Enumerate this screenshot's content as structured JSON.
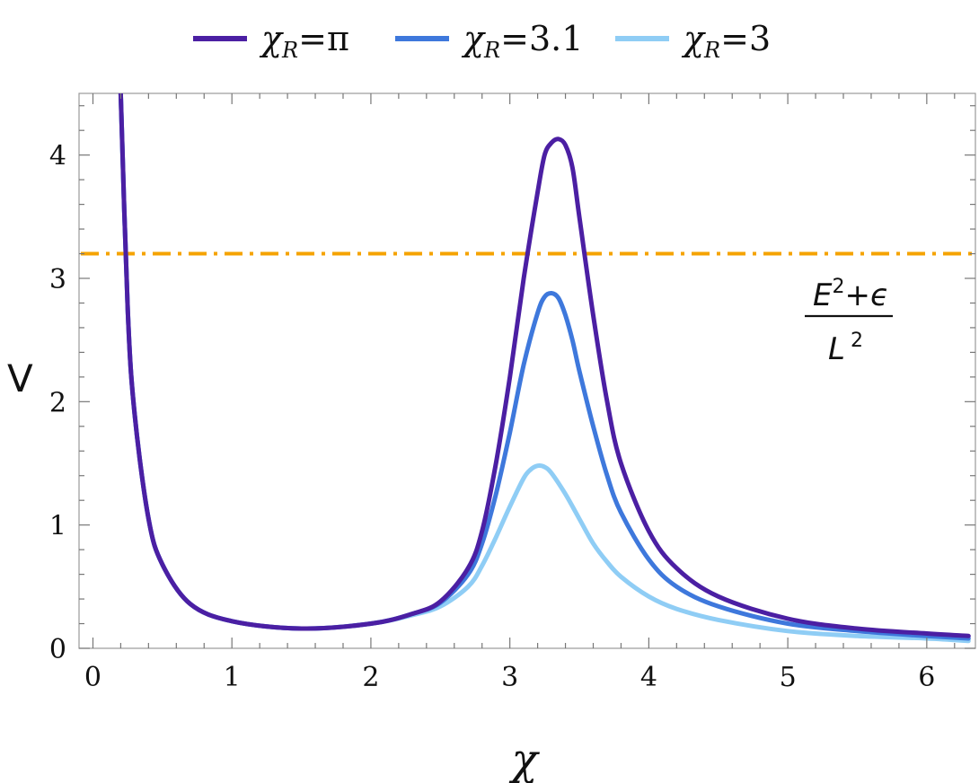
{
  "chart_data": {
    "type": "line",
    "xlabel": "χ",
    "ylabel": "V",
    "xlim": [
      -0.1,
      6.35
    ],
    "ylim": [
      0,
      4.5
    ],
    "xticks": [
      0,
      1,
      2,
      3,
      4,
      5,
      6
    ],
    "yticks": [
      0,
      1,
      2,
      3,
      4
    ],
    "xtick_labels": [
      "0",
      "1",
      "2",
      "3",
      "4",
      "5",
      "6"
    ],
    "ytick_labels": [
      "0",
      "1",
      "2",
      "3",
      "4"
    ],
    "grid": false,
    "legend_position": "top",
    "series": [
      {
        "name": "χ_R=π",
        "legend": {
          "main": "χ",
          "sub": "R",
          "rest": "=π"
        },
        "color": "#4b1fa3",
        "x": [
          0.2,
          0.25,
          0.3,
          0.4,
          0.5,
          0.7,
          1.0,
          1.5,
          2.0,
          2.3,
          2.5,
          2.7,
          2.8,
          2.9,
          3.0,
          3.1,
          3.2,
          3.25,
          3.3,
          3.35,
          3.4,
          3.45,
          3.5,
          3.6,
          3.7,
          3.8,
          4.0,
          4.2,
          4.5,
          5.0,
          5.5,
          6.0,
          6.3
        ],
        "y": [
          4.5,
          2.75,
          1.9,
          1.05,
          0.68,
          0.36,
          0.22,
          0.16,
          0.2,
          0.28,
          0.38,
          0.65,
          0.95,
          1.5,
          2.2,
          3.0,
          3.7,
          4.0,
          4.1,
          4.13,
          4.08,
          3.9,
          3.5,
          2.7,
          2.0,
          1.5,
          0.95,
          0.65,
          0.42,
          0.24,
          0.16,
          0.12,
          0.1
        ]
      },
      {
        "name": "χ_R=3.1",
        "legend": {
          "main": "χ",
          "sub": "R",
          "rest": "=3.1"
        },
        "color": "#3e78dc",
        "x": [
          0.2,
          0.25,
          0.3,
          0.4,
          0.5,
          0.7,
          1.0,
          1.5,
          2.0,
          2.3,
          2.5,
          2.7,
          2.8,
          2.9,
          3.0,
          3.1,
          3.2,
          3.25,
          3.3,
          3.35,
          3.4,
          3.45,
          3.5,
          3.6,
          3.7,
          3.8,
          4.0,
          4.2,
          4.5,
          5.0,
          5.5,
          6.0,
          6.3
        ],
        "y": [
          4.5,
          2.75,
          1.9,
          1.05,
          0.68,
          0.36,
          0.22,
          0.16,
          0.2,
          0.28,
          0.37,
          0.6,
          0.85,
          1.25,
          1.75,
          2.3,
          2.72,
          2.85,
          2.88,
          2.84,
          2.7,
          2.5,
          2.25,
          1.8,
          1.4,
          1.1,
          0.72,
          0.5,
          0.34,
          0.2,
          0.14,
          0.1,
          0.08
        ]
      },
      {
        "name": "χ_R=3",
        "legend": {
          "main": "χ",
          "sub": "R",
          "rest": "=3"
        },
        "color": "#8fcdf5",
        "x": [
          0.2,
          0.25,
          0.3,
          0.4,
          0.5,
          0.7,
          1.0,
          1.5,
          2.0,
          2.3,
          2.5,
          2.7,
          2.8,
          2.9,
          3.0,
          3.1,
          3.15,
          3.2,
          3.25,
          3.3,
          3.4,
          3.5,
          3.6,
          3.7,
          3.8,
          4.0,
          4.2,
          4.5,
          5.0,
          5.5,
          6.0,
          6.3
        ],
        "y": [
          4.5,
          2.75,
          1.9,
          1.05,
          0.68,
          0.36,
          0.22,
          0.16,
          0.2,
          0.27,
          0.34,
          0.5,
          0.67,
          0.9,
          1.15,
          1.38,
          1.45,
          1.48,
          1.47,
          1.42,
          1.25,
          1.05,
          0.85,
          0.7,
          0.58,
          0.42,
          0.32,
          0.23,
          0.14,
          0.1,
          0.08,
          0.06
        ]
      }
    ],
    "reference_line": {
      "y": 3.2,
      "color": "#f5a300",
      "style": "dash-dot"
    },
    "annotation": {
      "numerator_base": "E",
      "numerator_sup": "2",
      "numerator_rest": "+ϵ",
      "denominator_base": "L",
      "denominator_sup": "2"
    }
  }
}
